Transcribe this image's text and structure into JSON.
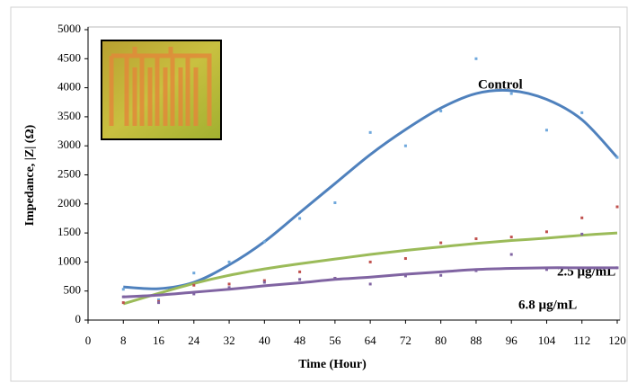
{
  "chart_data": {
    "type": "scatter-trend",
    "x_label": "Time (Hour)",
    "y_label": "Impedance, |Z| (Ω)",
    "x": [
      8,
      16,
      24,
      32,
      40,
      48,
      56,
      64,
      72,
      80,
      88,
      96,
      104,
      112,
      120
    ],
    "xlim": [
      0,
      120
    ],
    "xticks": [
      0,
      8,
      16,
      24,
      32,
      40,
      48,
      56,
      64,
      72,
      80,
      88,
      96,
      104,
      112,
      120
    ],
    "ylim": [
      0,
      5000
    ],
    "yticks": [
      0,
      500,
      1000,
      1500,
      2000,
      2500,
      3000,
      3500,
      4000,
      4500,
      5000
    ],
    "series": [
      {
        "name": "Control",
        "color": "#4f81bd",
        "point_color": "#6fa8dc",
        "values": [
          530,
          350,
          810,
          1000,
          1350,
          1750,
          2020,
          3230,
          3000,
          3600,
          4500,
          3900,
          3270,
          3570,
          2800
        ],
        "trend": [
          570,
          540,
          650,
          950,
          1350,
          1850,
          2350,
          2850,
          3280,
          3650,
          3900,
          3950,
          3800,
          3450,
          2800
        ]
      },
      {
        "name": "2.5 µg/mL",
        "color": "#9bbb59",
        "point_color": "#c0504d",
        "values": [
          300,
          320,
          600,
          620,
          680,
          830,
          720,
          1000,
          1060,
          1330,
          1400,
          1430,
          1520,
          1760,
          1950
        ],
        "trend": [
          280,
          460,
          630,
          770,
          880,
          970,
          1050,
          1130,
          1200,
          1260,
          1320,
          1370,
          1410,
          1460,
          1500
        ]
      },
      {
        "name": "6.8 µg/mL",
        "color": "#8064a2",
        "point_color": "#8064a2",
        "values": [
          400,
          300,
          450,
          560,
          650,
          700,
          720,
          620,
          760,
          770,
          850,
          1130,
          870,
          1480,
          900
        ],
        "trend": [
          400,
          430,
          480,
          530,
          590,
          640,
          700,
          740,
          790,
          830,
          870,
          890,
          900,
          900,
          900
        ]
      }
    ]
  }
}
